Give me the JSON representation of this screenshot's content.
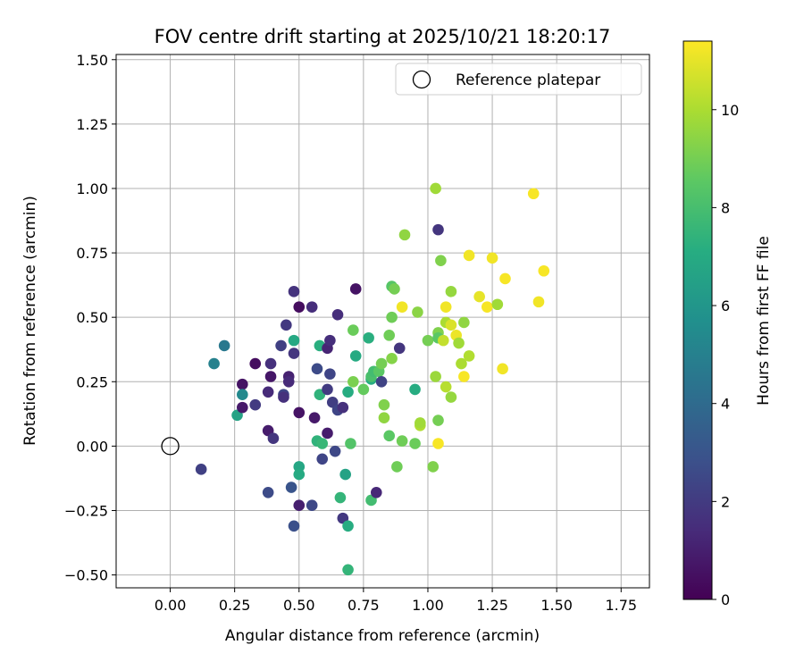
{
  "chart_data": {
    "type": "scatter",
    "title": "FOV centre drift starting at 2025/10/21 18:20:17",
    "xlabel": "Angular distance from reference (arcmin)",
    "ylabel": "Rotation from reference (arcmin)",
    "xlim": [
      -0.21,
      1.86
    ],
    "ylim": [
      -0.55,
      1.52
    ],
    "x_ticks": [
      0.0,
      0.25,
      0.5,
      0.75,
      1.0,
      1.25,
      1.5,
      1.75
    ],
    "x_tick_labels": [
      "0.00",
      "0.25",
      "0.50",
      "0.75",
      "1.00",
      "1.25",
      "1.50",
      "1.75"
    ],
    "y_ticks": [
      -0.5,
      -0.25,
      0.0,
      0.25,
      0.5,
      0.75,
      1.0,
      1.25,
      1.5
    ],
    "y_tick_labels": [
      "−0.50",
      "−0.25",
      "0.00",
      "0.25",
      "0.50",
      "0.75",
      "1.00",
      "1.25",
      "1.50"
    ],
    "grid": true,
    "legend": {
      "placement": "top-right",
      "entries": [
        "Reference platepar"
      ]
    },
    "reference_point": {
      "x": 0.0,
      "y": 0.0
    },
    "colorbar": {
      "label": "Hours from first FF file",
      "colormap": "viridis",
      "range": [
        0,
        11.4
      ],
      "ticks": [
        0,
        2,
        4,
        6,
        8,
        10
      ],
      "tick_labels": [
        "0",
        "2",
        "4",
        "6",
        "8",
        "10"
      ]
    },
    "points": [
      {
        "x": 0.12,
        "y": -0.09,
        "c": 2.2
      },
      {
        "x": 0.17,
        "y": 0.32,
        "c": 5.0
      },
      {
        "x": 0.21,
        "y": 0.39,
        "c": 4.6
      },
      {
        "x": 0.26,
        "y": 0.12,
        "c": 6.6
      },
      {
        "x": 0.28,
        "y": 0.24,
        "c": 0.6
      },
      {
        "x": 0.28,
        "y": 0.15,
        "c": 0.8
      },
      {
        "x": 0.28,
        "y": 0.2,
        "c": 5.4
      },
      {
        "x": 0.33,
        "y": 0.32,
        "c": 0.4
      },
      {
        "x": 0.33,
        "y": 0.16,
        "c": 2.0
      },
      {
        "x": 0.38,
        "y": 0.06,
        "c": 0.9
      },
      {
        "x": 0.38,
        "y": -0.18,
        "c": 2.6
      },
      {
        "x": 0.39,
        "y": 0.32,
        "c": 1.6
      },
      {
        "x": 0.39,
        "y": 0.27,
        "c": 0.7
      },
      {
        "x": 0.38,
        "y": 0.21,
        "c": 1.4
      },
      {
        "x": 0.4,
        "y": 0.03,
        "c": 1.8
      },
      {
        "x": 0.43,
        "y": 0.39,
        "c": 2.2
      },
      {
        "x": 0.44,
        "y": 0.2,
        "c": 2.4
      },
      {
        "x": 0.44,
        "y": 0.19,
        "c": 1.6
      },
      {
        "x": 0.45,
        "y": 0.47,
        "c": 1.9
      },
      {
        "x": 0.46,
        "y": 0.27,
        "c": 1.1
      },
      {
        "x": 0.46,
        "y": 0.25,
        "c": 1.4
      },
      {
        "x": 0.47,
        "y": -0.16,
        "c": 3.0
      },
      {
        "x": 0.48,
        "y": 0.36,
        "c": 1.8
      },
      {
        "x": 0.48,
        "y": 0.41,
        "c": 6.9
      },
      {
        "x": 0.48,
        "y": -0.31,
        "c": 2.8
      },
      {
        "x": 0.48,
        "y": 0.6,
        "c": 1.7
      },
      {
        "x": 0.5,
        "y": 0.54,
        "c": 0.4
      },
      {
        "x": 0.5,
        "y": 0.13,
        "c": 0.6
      },
      {
        "x": 0.5,
        "y": -0.08,
        "c": 6.8
      },
      {
        "x": 0.5,
        "y": -0.11,
        "c": 7.0
      },
      {
        "x": 0.5,
        "y": -0.23,
        "c": 1.0
      },
      {
        "x": 0.55,
        "y": 0.54,
        "c": 1.5
      },
      {
        "x": 0.55,
        "y": -0.23,
        "c": 2.5
      },
      {
        "x": 0.56,
        "y": 0.11,
        "c": 0.8
      },
      {
        "x": 0.57,
        "y": 0.3,
        "c": 2.6
      },
      {
        "x": 0.57,
        "y": 0.02,
        "c": 7.4
      },
      {
        "x": 0.58,
        "y": 0.39,
        "c": 7.2
      },
      {
        "x": 0.58,
        "y": 0.2,
        "c": 7.4
      },
      {
        "x": 0.59,
        "y": 0.01,
        "c": 7.6
      },
      {
        "x": 0.59,
        "y": -0.05,
        "c": 2.4
      },
      {
        "x": 0.61,
        "y": 0.38,
        "c": 1.2
      },
      {
        "x": 0.61,
        "y": 0.22,
        "c": 2.0
      },
      {
        "x": 0.61,
        "y": 0.05,
        "c": 0.9
      },
      {
        "x": 0.62,
        "y": 0.41,
        "c": 1.5
      },
      {
        "x": 0.62,
        "y": 0.28,
        "c": 2.4
      },
      {
        "x": 0.63,
        "y": 0.17,
        "c": 2.1
      },
      {
        "x": 0.64,
        "y": -0.02,
        "c": 2.5
      },
      {
        "x": 0.65,
        "y": 0.51,
        "c": 1.5
      },
      {
        "x": 0.65,
        "y": 0.14,
        "c": 2.4
      },
      {
        "x": 0.66,
        "y": -0.2,
        "c": 7.5
      },
      {
        "x": 0.67,
        "y": 0.15,
        "c": 1.6
      },
      {
        "x": 0.67,
        "y": -0.28,
        "c": 1.9
      },
      {
        "x": 0.68,
        "y": -0.11,
        "c": 6.6
      },
      {
        "x": 0.69,
        "y": 0.21,
        "c": 7.1
      },
      {
        "x": 0.69,
        "y": -0.31,
        "c": 7.1
      },
      {
        "x": 0.69,
        "y": -0.48,
        "c": 7.5
      },
      {
        "x": 0.71,
        "y": 0.45,
        "c": 8.8
      },
      {
        "x": 0.71,
        "y": 0.25,
        "c": 9.1
      },
      {
        "x": 0.72,
        "y": 0.35,
        "c": 7.0
      },
      {
        "x": 0.72,
        "y": 0.61,
        "c": 0.6
      },
      {
        "x": 0.7,
        "y": 0.01,
        "c": 8.3
      },
      {
        "x": 0.75,
        "y": 0.22,
        "c": 8.7
      },
      {
        "x": 0.77,
        "y": 0.42,
        "c": 7.2
      },
      {
        "x": 0.78,
        "y": 0.26,
        "c": 7.1
      },
      {
        "x": 0.78,
        "y": 0.27,
        "c": 8.1
      },
      {
        "x": 0.78,
        "y": -0.21,
        "c": 7.9
      },
      {
        "x": 0.79,
        "y": 0.29,
        "c": 7.9
      },
      {
        "x": 0.8,
        "y": -0.18,
        "c": 1.3
      },
      {
        "x": 0.81,
        "y": 0.29,
        "c": 8.5
      },
      {
        "x": 0.82,
        "y": 0.32,
        "c": 9.0
      },
      {
        "x": 0.82,
        "y": 0.25,
        "c": 2.3
      },
      {
        "x": 0.83,
        "y": 0.16,
        "c": 9.2
      },
      {
        "x": 0.83,
        "y": 0.11,
        "c": 9.5
      },
      {
        "x": 0.85,
        "y": 0.43,
        "c": 8.9
      },
      {
        "x": 0.85,
        "y": 0.04,
        "c": 8.5
      },
      {
        "x": 0.86,
        "y": 0.62,
        "c": 8.4
      },
      {
        "x": 0.86,
        "y": 0.5,
        "c": 8.9
      },
      {
        "x": 0.86,
        "y": 0.34,
        "c": 9.3
      },
      {
        "x": 0.87,
        "y": 0.61,
        "c": 9.0
      },
      {
        "x": 0.88,
        "y": -0.08,
        "c": 8.9
      },
      {
        "x": 0.89,
        "y": 0.38,
        "c": 1.8
      },
      {
        "x": 0.9,
        "y": 0.54,
        "c": 11.2
      },
      {
        "x": 0.9,
        "y": 0.02,
        "c": 8.9
      },
      {
        "x": 0.91,
        "y": 0.82,
        "c": 9.5
      },
      {
        "x": 0.95,
        "y": 0.01,
        "c": 8.8
      },
      {
        "x": 0.95,
        "y": 0.22,
        "c": 7.1
      },
      {
        "x": 0.96,
        "y": 0.52,
        "c": 9.4
      },
      {
        "x": 0.97,
        "y": 0.08,
        "c": 10.1
      },
      {
        "x": 0.97,
        "y": 0.09,
        "c": 9.8
      },
      {
        "x": 1.0,
        "y": 0.41,
        "c": 9.0
      },
      {
        "x": 1.02,
        "y": -0.08,
        "c": 9.2
      },
      {
        "x": 1.03,
        "y": 0.27,
        "c": 9.7
      },
      {
        "x": 1.03,
        "y": 1.0,
        "c": 9.8
      },
      {
        "x": 1.04,
        "y": 0.84,
        "c": 1.8
      },
      {
        "x": 1.04,
        "y": 0.44,
        "c": 9.2
      },
      {
        "x": 1.04,
        "y": 0.42,
        "c": 8.5
      },
      {
        "x": 1.04,
        "y": 0.1,
        "c": 9.0
      },
      {
        "x": 1.04,
        "y": 0.01,
        "c": 11.3
      },
      {
        "x": 1.05,
        "y": 0.72,
        "c": 9.2
      },
      {
        "x": 1.06,
        "y": 0.41,
        "c": 10.4
      },
      {
        "x": 1.07,
        "y": 0.54,
        "c": 11.2
      },
      {
        "x": 1.07,
        "y": 0.48,
        "c": 10.0
      },
      {
        "x": 1.07,
        "y": 0.23,
        "c": 10.2
      },
      {
        "x": 1.09,
        "y": 0.6,
        "c": 9.6
      },
      {
        "x": 1.09,
        "y": 0.47,
        "c": 10.8
      },
      {
        "x": 1.09,
        "y": 0.19,
        "c": 9.6
      },
      {
        "x": 1.11,
        "y": 0.43,
        "c": 11.1
      },
      {
        "x": 1.12,
        "y": 0.4,
        "c": 9.8
      },
      {
        "x": 1.13,
        "y": 0.32,
        "c": 10.0
      },
      {
        "x": 1.14,
        "y": 0.48,
        "c": 9.5
      },
      {
        "x": 1.14,
        "y": 0.27,
        "c": 11.3
      },
      {
        "x": 1.16,
        "y": 0.74,
        "c": 11.2
      },
      {
        "x": 1.16,
        "y": 0.35,
        "c": 10.1
      },
      {
        "x": 1.2,
        "y": 0.58,
        "c": 11.0
      },
      {
        "x": 1.23,
        "y": 0.54,
        "c": 11.3
      },
      {
        "x": 1.25,
        "y": 0.73,
        "c": 11.2
      },
      {
        "x": 1.27,
        "y": 0.55,
        "c": 9.8
      },
      {
        "x": 1.29,
        "y": 0.3,
        "c": 11.2
      },
      {
        "x": 1.3,
        "y": 0.65,
        "c": 11.3
      },
      {
        "x": 1.41,
        "y": 0.98,
        "c": 11.3
      },
      {
        "x": 1.43,
        "y": 0.56,
        "c": 11.2
      },
      {
        "x": 1.45,
        "y": 0.68,
        "c": 11.3
      }
    ]
  }
}
